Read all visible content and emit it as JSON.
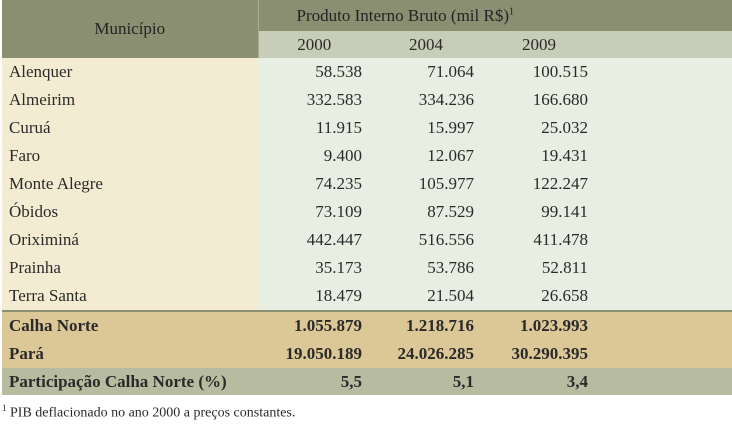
{
  "header": {
    "municipio": "Município",
    "produto": "Produto Interno Bruto (mil R$)",
    "produto_sup": "1",
    "years": [
      "2000",
      "2004",
      "2009"
    ]
  },
  "rows": [
    {
      "name": "Alenquer",
      "v": [
        "58.538",
        "71.064",
        "100.515"
      ]
    },
    {
      "name": "Almeirim",
      "v": [
        "332.583",
        "334.236",
        "166.680"
      ]
    },
    {
      "name": "Curuá",
      "v": [
        "11.915",
        "15.997",
        "25.032"
      ]
    },
    {
      "name": "Faro",
      "v": [
        "9.400",
        "12.067",
        "19.431"
      ]
    },
    {
      "name": "Monte Alegre",
      "v": [
        "74.235",
        "105.977",
        "122.247"
      ]
    },
    {
      "name": "Óbidos",
      "v": [
        "73.109",
        "87.529",
        "99.141"
      ]
    },
    {
      "name": "Oriximiná",
      "v": [
        "442.447",
        "516.556",
        "411.478"
      ]
    },
    {
      "name": "Prainha",
      "v": [
        "35.173",
        "53.786",
        "52.811"
      ]
    },
    {
      "name": "Terra Santa",
      "v": [
        "18.479",
        "21.504",
        "26.658"
      ]
    }
  ],
  "totals": [
    {
      "name": "Calha Norte",
      "v": [
        "1.055.879",
        "1.218.716",
        "1.023.993"
      ]
    },
    {
      "name": "Pará",
      "v": [
        "19.050.189",
        "24.026.285",
        "30.290.395"
      ]
    }
  ],
  "participation": {
    "name": "Participação Calha Norte (%)",
    "v": [
      "5,5",
      "5,1",
      "3,4"
    ]
  },
  "footnote": {
    "sup": "1",
    "text": " PIB deflacionado no ano 2000 a preços constantes."
  }
}
